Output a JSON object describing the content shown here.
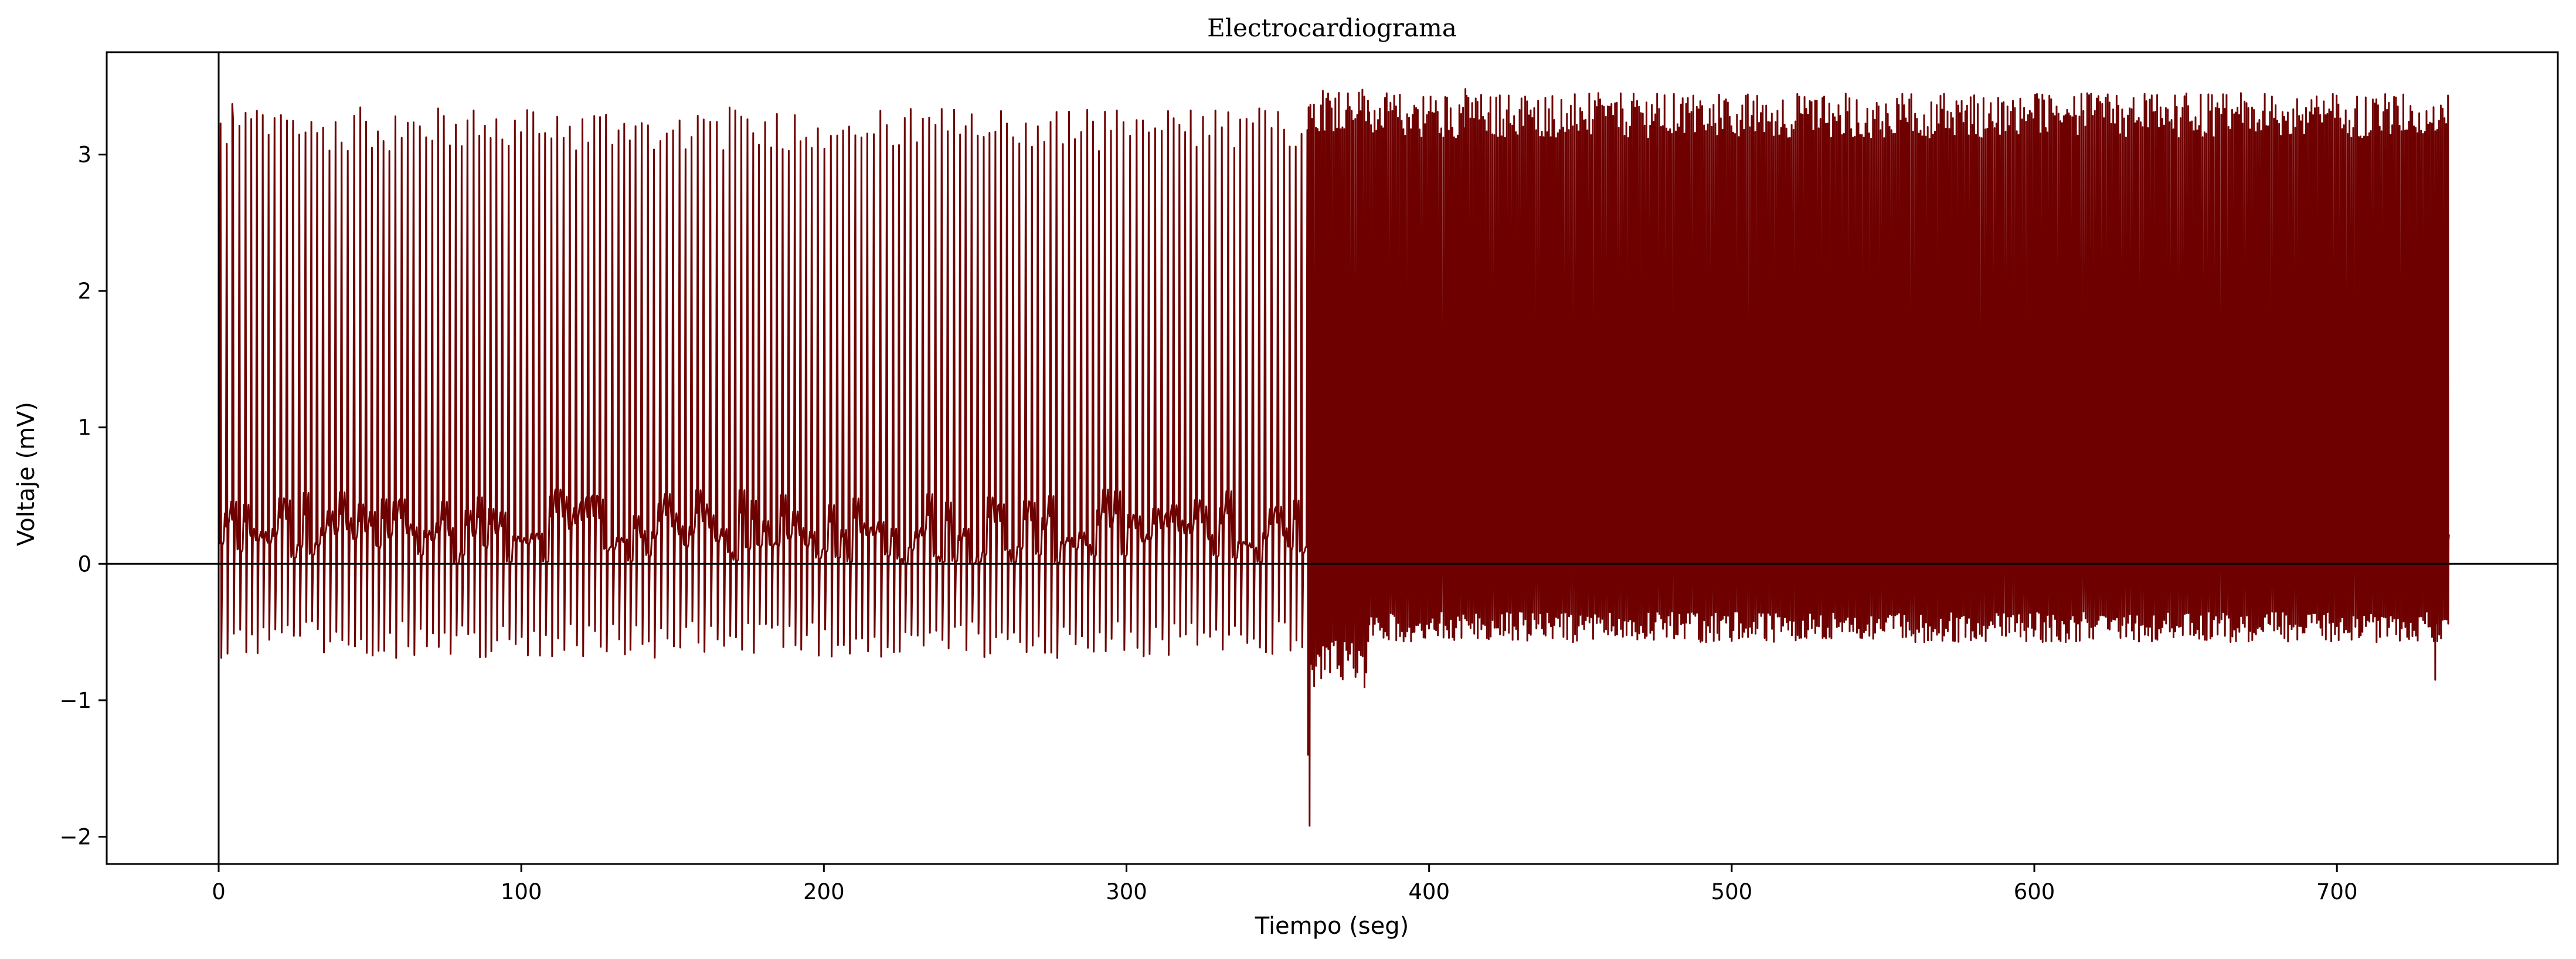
{
  "chart_data": {
    "type": "line",
    "title": "Electrocardiograma",
    "xlabel": "Tiempo (seg)",
    "ylabel": "Voltaje (mV)",
    "xlim": [
      -37,
      773
    ],
    "ylim": [
      -2.2,
      3.75
    ],
    "x_ticks": [
      0,
      100,
      200,
      300,
      400,
      500,
      600,
      700
    ],
    "y_ticks": [
      -2,
      -1,
      0,
      1,
      2,
      3
    ],
    "y_tick_labels": [
      "−2",
      "−1",
      "0",
      "1",
      "2",
      "3"
    ],
    "reference_lines": {
      "horizontal_y": 0,
      "vertical_x": 0
    },
    "line_color": "#6e0000",
    "grid": false,
    "series": [
      {
        "x_range": [
          0,
          737
        ],
        "segments": [
          {
            "x_range": [
              0,
              360
            ],
            "beat_interval": 2.0,
            "r_peak_approx": 3.25,
            "baseline_band": [
              0.0,
              0.55
            ],
            "s_trough_approx": -0.6
          },
          {
            "x_range": [
              360,
              380
            ],
            "beat_interval": 0.6,
            "r_peak_approx": 3.4,
            "baseline_band": [
              -0.2,
              0.1
            ],
            "s_trough_approx": -0.8
          },
          {
            "x_range": [
              380,
              737
            ],
            "beat_interval": 0.6,
            "r_peak_approx": 3.35,
            "baseline_band": [
              0.05,
              0.25
            ],
            "s_trough_approx": -0.5
          }
        ],
        "notable_points": [
          {
            "x": 360.5,
            "y": -1.92
          },
          {
            "x": 360.0,
            "y": -1.4
          },
          {
            "x": 732.5,
            "y": -0.85
          },
          {
            "x": 4.5,
            "y": 3.37
          },
          {
            "x": 412.0,
            "y": 3.48
          }
        ]
      }
    ]
  }
}
